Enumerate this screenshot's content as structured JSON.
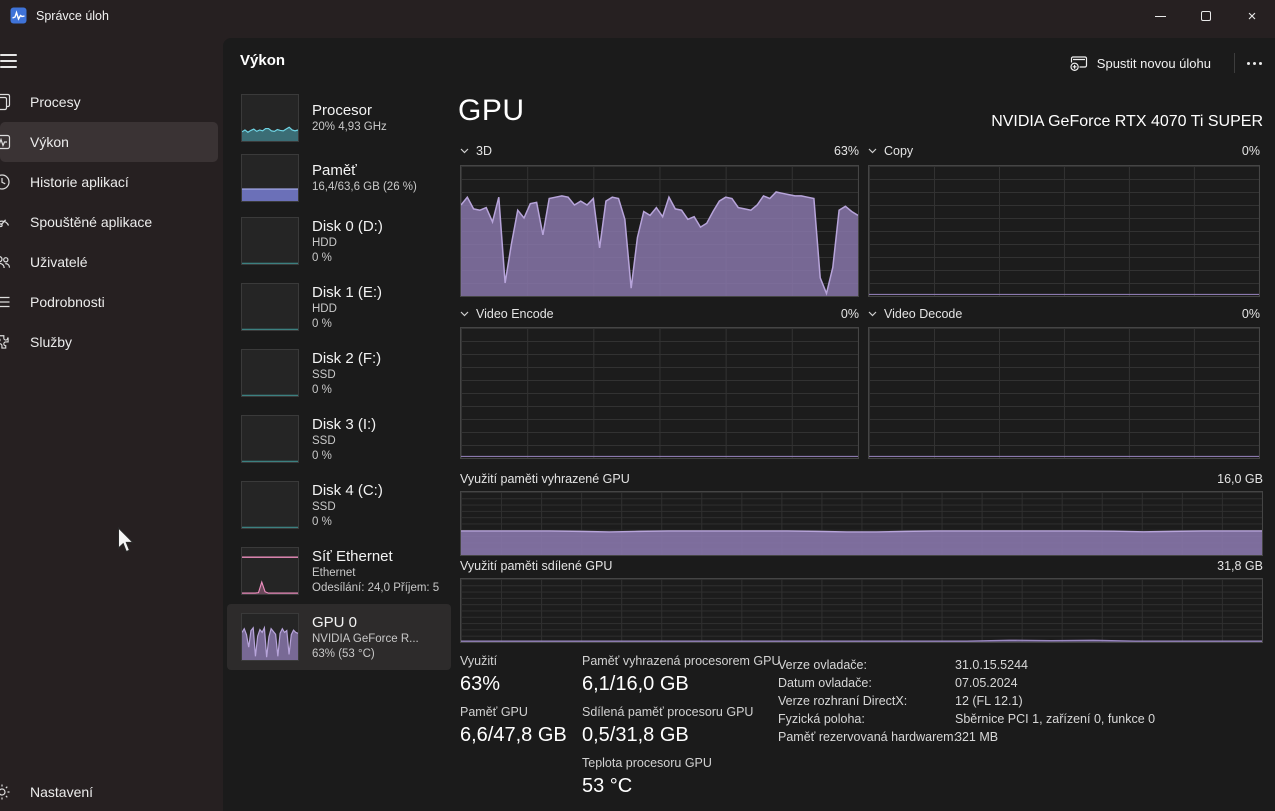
{
  "window": {
    "title": "Správce úloh"
  },
  "icons": {
    "app": "task-manager-icon",
    "menu": "hamburger-icon",
    "new_task": "window-plus-icon",
    "more": "ellipsis-icon",
    "minimize": "minimize-icon",
    "maximize": "maximize-icon",
    "close": "close-icon",
    "settings": "gear-icon",
    "chart_collapse": "chevron-down-icon"
  },
  "sidebar": {
    "items": [
      {
        "id": "processes",
        "label": "Procesy",
        "icon": "processes",
        "selected": false
      },
      {
        "id": "performance",
        "label": "Výkon",
        "icon": "performance",
        "selected": true
      },
      {
        "id": "app-history",
        "label": "Historie aplikací",
        "icon": "history",
        "selected": false
      },
      {
        "id": "startup-apps",
        "label": "Spouštěné aplikace",
        "icon": "startup",
        "selected": false
      },
      {
        "id": "users",
        "label": "Uživatelé",
        "icon": "users",
        "selected": false
      },
      {
        "id": "details",
        "label": "Podrobnosti",
        "icon": "details",
        "selected": false
      },
      {
        "id": "services",
        "label": "Služby",
        "icon": "services",
        "selected": false
      }
    ],
    "settings_label": "Nastavení"
  },
  "header": {
    "page_title": "Výkon",
    "run_new_task_label": "Spustit novou úlohu"
  },
  "perf_list": [
    {
      "id": "cpu",
      "name": "Procesor",
      "line2": "20% 4,93 GHz",
      "lines": 2,
      "chart": "mini-cpu",
      "selected": false
    },
    {
      "id": "memory",
      "name": "Paměť",
      "line2": "16,4/63,6 GB (26 %)",
      "lines": 2,
      "chart": "mini-memory",
      "selected": false
    },
    {
      "id": "disk-0",
      "name": "Disk 0 (D:)",
      "line2": "HDD",
      "line3": "0 %",
      "lines": 3,
      "chart": "mini-disk",
      "selected": false
    },
    {
      "id": "disk-1",
      "name": "Disk 1 (E:)",
      "line2": "HDD",
      "line3": "0 %",
      "lines": 3,
      "chart": "mini-disk",
      "selected": false
    },
    {
      "id": "disk-2",
      "name": "Disk 2 (F:)",
      "line2": "SSD",
      "line3": "0 %",
      "lines": 3,
      "chart": "mini-disk",
      "selected": false
    },
    {
      "id": "disk-3",
      "name": "Disk 3 (I:)",
      "line2": "SSD",
      "line3": "0 %",
      "lines": 3,
      "chart": "mini-disk",
      "selected": false
    },
    {
      "id": "disk-4",
      "name": "Disk 4 (C:)",
      "line2": "SSD",
      "line3": "0 %",
      "lines": 3,
      "chart": "mini-disk",
      "selected": false
    },
    {
      "id": "ethernet",
      "name": "Síť Ethernet",
      "line2": "Ethernet",
      "line3": "Odesílání: 24,0 Příjem: 5",
      "lines": 3,
      "chart": "mini-network",
      "selected": false
    },
    {
      "id": "gpu-0",
      "name": "GPU 0",
      "line2": "NVIDIA GeForce R...",
      "line3": "63% (53 °C)",
      "lines": 3,
      "chart": "mini-gpu",
      "selected": true
    }
  ],
  "gpu": {
    "title": "GPU",
    "device_name": "NVIDIA GeForce RTX 4070 Ti SUPER",
    "charts": [
      {
        "label": "3D",
        "value": "63%"
      },
      {
        "label": "Copy",
        "value": "0%"
      },
      {
        "label": "Video Encode",
        "value": "0%"
      },
      {
        "label": "Video Decode",
        "value": "0%"
      }
    ],
    "memory": [
      {
        "label": "Využití paměti vyhrazené GPU",
        "max": "16,0 GB"
      },
      {
        "label": "Využití paměti sdílené GPU",
        "max": "31,8 GB"
      }
    ],
    "stats": [
      {
        "label": "Využití",
        "value": "63%"
      },
      {
        "label": "Paměť GPU",
        "value": "6,6/47,8 GB"
      },
      {
        "label": "Paměť vyhrazená procesorem GPU",
        "value": "6,1/16,0 GB"
      },
      {
        "label": "Sdílená paměť procesoru GPU",
        "value": "0,5/31,8 GB"
      },
      {
        "label": "Teplota procesoru GPU",
        "value": "53 °C"
      }
    ],
    "details": [
      {
        "label": "Verze ovladače:",
        "value": "31.0.15.5244"
      },
      {
        "label": "Datum ovladače:",
        "value": "07.05.2024"
      },
      {
        "label": "Verze rozhraní DirectX:",
        "value": "12 (FL 12.1)"
      },
      {
        "label": "Fyzická poloha:",
        "value": "Sběrnice PCI 1, zařízení 0, funkce 0"
      },
      {
        "label": "Paměť rezervovaná hardwarem:",
        "value": "321 MB"
      }
    ]
  },
  "chart_data": [
    {
      "id": "chart-3d",
      "type": "area",
      "title": "3D utilization %",
      "ymax": 100,
      "grid": true,
      "series": [
        {
          "name": "3D",
          "stroke": "#b7a4da",
          "fill": "rgba(139,121,174,0.82)",
          "width": 1.5,
          "values": [
            70,
            76,
            67,
            66,
            68,
            57,
            76,
            10,
            40,
            66,
            60,
            71,
            72,
            47,
            75,
            76,
            77,
            76,
            70,
            73,
            70,
            75,
            37,
            73,
            76,
            75,
            59,
            6,
            45,
            65,
            62,
            68,
            61,
            76,
            67,
            66,
            59,
            61,
            53,
            56,
            65,
            73,
            76,
            75,
            68,
            67,
            66,
            70,
            77,
            75,
            80,
            79,
            78,
            77,
            77,
            76,
            75,
            14,
            2,
            22,
            66,
            69,
            65,
            62
          ]
        }
      ]
    },
    {
      "id": "chart-copy",
      "type": "area",
      "title": "Copy utilization %",
      "ymax": 100,
      "series": [
        {
          "name": "Copy",
          "stroke": "#8b79ae",
          "width": 1.2,
          "values": [
            1,
            1
          ]
        }
      ]
    },
    {
      "id": "chart-encode",
      "type": "area",
      "title": "Video Encode utilization %",
      "ymax": 100,
      "series": [
        {
          "name": "Video Encode",
          "stroke": "#8b79ae",
          "width": 1.2,
          "values": [
            1,
            1
          ]
        }
      ]
    },
    {
      "id": "chart-decode",
      "type": "area",
      "title": "Video Decode utilization %",
      "ymax": 100,
      "series": [
        {
          "name": "Video Decode",
          "stroke": "#8b79ae",
          "width": 1.2,
          "values": [
            1,
            1
          ]
        }
      ]
    },
    {
      "id": "chart-dedicated",
      "type": "area",
      "title": "Dedicated GPU memory (GB)",
      "ymax": 16,
      "series": [
        {
          "name": "Dedicated",
          "stroke": "#b7a4da",
          "fill": "rgba(139,121,174,0.88)",
          "width": 1.4,
          "values": [
            6.1,
            6.1,
            6.1,
            6.1,
            6.0,
            5.85,
            6.0,
            6.1,
            6.1,
            6.1,
            6.1,
            6.1,
            6.0,
            5.85,
            5.85,
            6.0,
            6.1,
            6.1,
            6.1,
            6.1,
            6.1,
            6.1,
            6.05,
            5.9,
            6.0,
            6.1,
            6.1,
            6.1
          ]
        }
      ]
    },
    {
      "id": "chart-shared",
      "type": "area",
      "title": "Shared GPU memory (GB)",
      "ymax": 31.8,
      "series": [
        {
          "name": "Shared",
          "stroke": "#9a88c2",
          "fill": "rgba(139,121,174,0.6)",
          "width": 1.3,
          "values": [
            0.45,
            0.45,
            0.45,
            0.45,
            0.45,
            0.45,
            0.45,
            0.45,
            0.45,
            0.45,
            0.45,
            0.45,
            0.45,
            0.9,
            0.7,
            0.9,
            0.45,
            0.45,
            0.45,
            0.45
          ]
        }
      ]
    },
    {
      "id": "mini-cpu",
      "type": "area",
      "title": "CPU mini graph %",
      "ymax": 100,
      "series": [
        {
          "name": "CPU",
          "stroke": "#6fd4e4",
          "fill": "rgba(86,198,216,0.45)",
          "width": 1.2,
          "values": [
            20,
            24,
            19,
            23,
            26,
            21,
            24,
            22,
            27,
            27,
            22,
            21,
            25,
            23,
            22,
            26,
            30,
            24,
            22,
            24
          ]
        }
      ]
    },
    {
      "id": "mini-memory",
      "type": "area",
      "title": "Memory mini bar 26%",
      "ymax": 100,
      "series": [
        {
          "name": "In use",
          "stroke": "#9a9fdd",
          "fill": "rgba(111,116,192,0.95)",
          "width": 1.4,
          "values": [
            26,
            26
          ]
        }
      ]
    },
    {
      "id": "mini-disk",
      "type": "area",
      "title": "Disk mini graph 0%",
      "ymax": 100,
      "series": [
        {
          "name": "Active",
          "stroke": "#3f8d8d",
          "width": 1.2,
          "values": [
            1.5,
            1.5
          ]
        }
      ]
    },
    {
      "id": "mini-network",
      "type": "area",
      "title": "Network mini graph",
      "ymax": 100,
      "series": [
        {
          "name": "Send",
          "stroke": "#ef8fc0",
          "width": 1.3,
          "values": [
            80,
            80
          ]
        },
        {
          "name": "Receive",
          "stroke": "#ef8fc0",
          "fill": "rgba(236,135,189,0.35)",
          "width": 1.1,
          "values": [
            2,
            2,
            2,
            2,
            2,
            3,
            26,
            5,
            2,
            2,
            2,
            2,
            2,
            2,
            2,
            2,
            2,
            2
          ]
        }
      ]
    },
    {
      "id": "mini-gpu",
      "type": "area",
      "title": "GPU mini graph %",
      "ymax": 100,
      "series": [
        {
          "name": "GPU",
          "stroke": "#b7a4da",
          "fill": "rgba(139,121,174,0.82)",
          "width": 1.2,
          "values": [
            60,
            68,
            55,
            28,
            64,
            70,
            8,
            52,
            66,
            60,
            70,
            6,
            50,
            68,
            62,
            56,
            8,
            58,
            68,
            60,
            64,
            12,
            55,
            65,
            60,
            58
          ]
        }
      ]
    }
  ],
  "colors": {
    "sidebar_bg": "#262021",
    "content_bg": "#1b1b1b",
    "selected_row_bg": "#2d2b2b",
    "selected_nav_bg": "#3a3334",
    "chart_bg": "#1c1c1c",
    "chart_border": "#454545",
    "gpu_purple": "#8b79ae",
    "gpu_purple_stroke": "#b7a4da",
    "cpu_teal": "#6fd4e4",
    "memory_blue": "#6f74c0",
    "disk_teal": "#3f8d8d",
    "network_pink": "#ef8fc0"
  }
}
